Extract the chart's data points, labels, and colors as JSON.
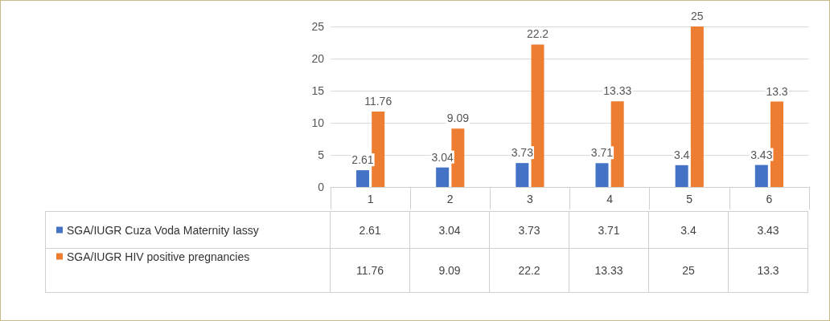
{
  "chart_data": {
    "type": "bar",
    "categories": [
      "1",
      "2",
      "3",
      "4",
      "5",
      "6"
    ],
    "series": [
      {
        "name": "SGA/IUGR Cuza Voda Maternity Iassy",
        "color": "#4472c4",
        "values": [
          2.61,
          3.04,
          3.73,
          3.71,
          3.4,
          3.43
        ],
        "value_labels": [
          "2.61",
          "3.04",
          "3.73",
          "3.71",
          "3.4",
          "3.43"
        ]
      },
      {
        "name": "SGA/IUGR HIV positive pregnancies",
        "color": "#ed7d31",
        "values": [
          11.76,
          9.09,
          22.2,
          13.33,
          25,
          13.3
        ],
        "value_labels": [
          "11.76",
          "9.09",
          "22.2",
          "13.33",
          "25",
          "13.3"
        ]
      }
    ],
    "annotations": [
      "2.61",
      "3.04",
      "3.73",
      "3.71",
      "3.4",
      "3.43",
      "11.76",
      "9.09",
      "22.2",
      "13.33",
      "25",
      "13.3"
    ],
    "ylim": [
      0,
      25
    ],
    "yticks": [
      0,
      5,
      10,
      15,
      20,
      25
    ],
    "grid": "y",
    "legend": "bottom left",
    "data_labels": true
  }
}
